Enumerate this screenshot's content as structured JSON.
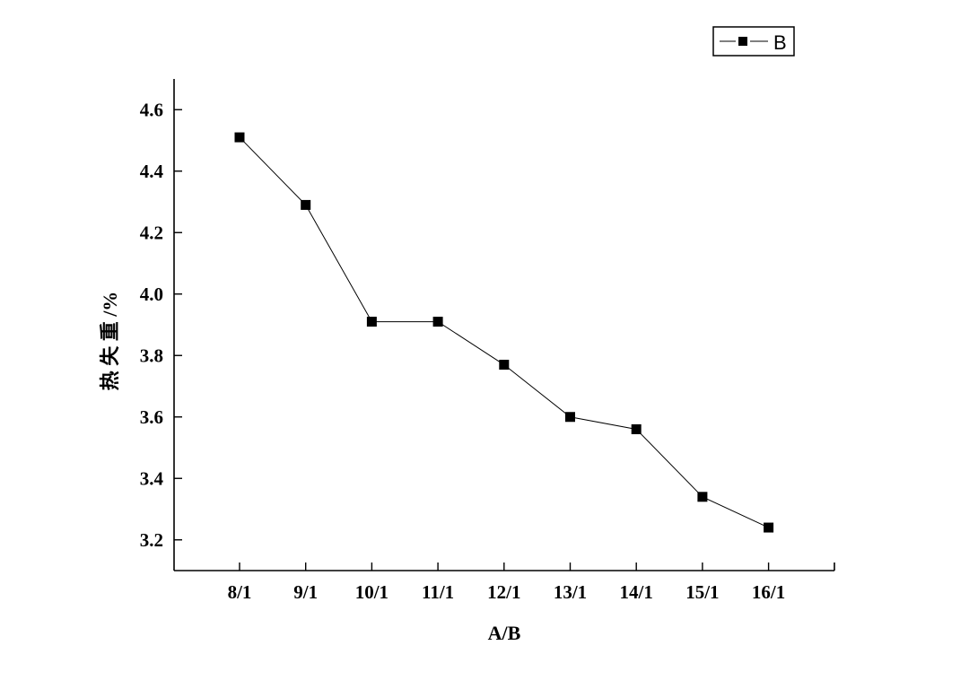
{
  "chart_data": {
    "type": "line",
    "xlabel": "A/B",
    "ylabel": "热 失 重 /%",
    "categories": [
      "8/1",
      "9/1",
      "10/1",
      "11/1",
      "12/1",
      "13/1",
      "14/1",
      "15/1",
      "16/1"
    ],
    "series": [
      {
        "name": "B",
        "values": [
          4.51,
          4.29,
          3.91,
          3.91,
          3.77,
          3.6,
          3.56,
          3.34,
          3.24
        ]
      }
    ],
    "ylim": [
      3.1,
      4.7
    ],
    "yticks": [
      3.2,
      3.4,
      3.6,
      3.8,
      4.0,
      4.2,
      4.4,
      4.6
    ],
    "ytick_labels": [
      "3.2",
      "3.4",
      "3.6",
      "3.8",
      "4.0",
      "4.2",
      "4.4",
      "4.6"
    ],
    "legend": "top-right",
    "grid": false,
    "marker": "square",
    "line_color": "#000000"
  }
}
